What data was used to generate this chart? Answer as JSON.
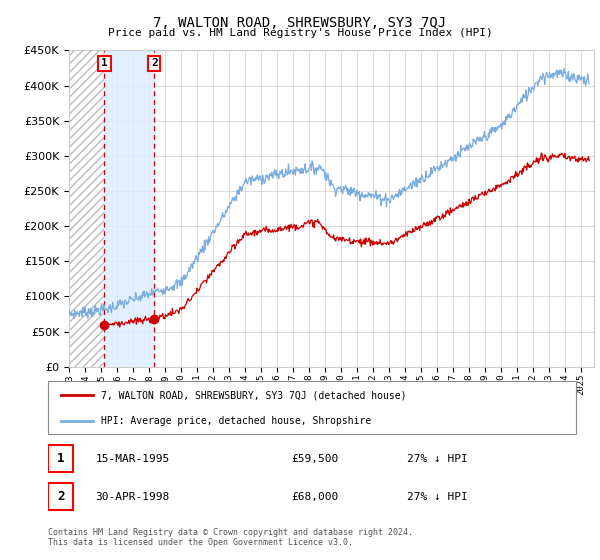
{
  "title": "7, WALTON ROAD, SHREWSBURY, SY3 7QJ",
  "subtitle": "Price paid vs. HM Land Registry's House Price Index (HPI)",
  "sale1_label": "15-MAR-1995",
  "sale1_price": 59500,
  "sale1_pct": "27% ↓ HPI",
  "sale2_label": "30-APR-1998",
  "sale2_price": 68000,
  "sale2_pct": "27% ↓ HPI",
  "legend_line1": "7, WALTON ROAD, SHREWSBURY, SY3 7QJ (detached house)",
  "legend_line2": "HPI: Average price, detached house, Shropshire",
  "footer": "Contains HM Land Registry data © Crown copyright and database right 2024.\nThis data is licensed under the Open Government Licence v3.0.",
  "hpi_color": "#7aace0",
  "price_color": "#cc0000",
  "shade_color": "#ddeeff",
  "ylim": [
    0,
    450000
  ],
  "xlim_start": 1993.0,
  "xlim_end": 2025.8,
  "sale1_x": 1995.21,
  "sale2_x": 1998.33
}
